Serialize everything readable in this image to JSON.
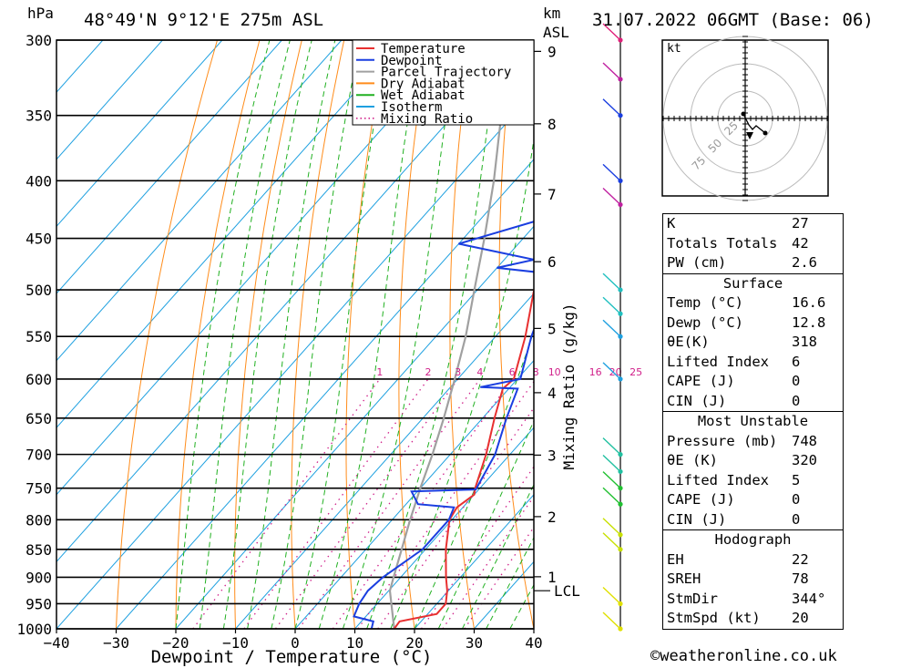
{
  "header": {
    "pressure_unit": "hPa",
    "location": "48°49'N  9°12'E  275m  ASL",
    "km_label": "km",
    "asl_label": "ASL",
    "datetime": "31.07.2022  06GMT  (Base: 06)"
  },
  "legend": [
    {
      "label": "Temperature",
      "color": "#e83030",
      "style": "solid"
    },
    {
      "label": "Dewpoint",
      "color": "#1a3ee0",
      "style": "solid"
    },
    {
      "label": "Parcel Trajectory",
      "color": "#a0a0a0",
      "style": "solid"
    },
    {
      "label": "Dry Adiabat",
      "color": "#ff8c1a",
      "style": "solid"
    },
    {
      "label": "Wet Adiabat",
      "color": "#20b020",
      "style": "solid"
    },
    {
      "label": "Isotherm",
      "color": "#1ea0e0",
      "style": "solid"
    },
    {
      "label": "Mixing Ratio",
      "color": "#d0208a",
      "style": "dotted"
    }
  ],
  "chart_data": {
    "type": "skew-t",
    "xlabel": "Dewpoint / Temperature (°C)",
    "ylabel_right": "Mixing Ratio (g/kg)",
    "pressure_levels": [
      300,
      350,
      400,
      450,
      500,
      550,
      600,
      650,
      700,
      750,
      800,
      850,
      900,
      950,
      1000
    ],
    "temperature_ticks": [
      -40,
      -30,
      -20,
      -10,
      0,
      10,
      20,
      30,
      40
    ],
    "height_km_ticks": [
      {
        "label": "1",
        "pressure": 899
      },
      {
        "label": "2",
        "pressure": 795
      },
      {
        "label": "3",
        "pressure": 701
      },
      {
        "label": "4",
        "pressure": 617
      },
      {
        "label": "5",
        "pressure": 541
      },
      {
        "label": "6",
        "pressure": 472
      },
      {
        "label": "7",
        "pressure": 411
      },
      {
        "label": "8",
        "pressure": 356
      },
      {
        "label": "9",
        "pressure": 307
      }
    ],
    "lcl": {
      "label": "LCL",
      "pressure": 925
    },
    "mixing_ratio_labels": [
      "1",
      "2",
      "3",
      "4",
      "6",
      "8",
      "10",
      "16",
      "20",
      "25"
    ],
    "mixing_ratio_values": [
      1,
      2,
      3,
      4,
      6,
      8,
      10,
      16,
      20,
      25
    ],
    "temperature_profile": [
      {
        "p": 1000,
        "t": 16.6
      },
      {
        "p": 985,
        "t": 16.4
      },
      {
        "p": 970,
        "t": 21.5
      },
      {
        "p": 950,
        "t": 21.5
      },
      {
        "p": 925,
        "t": 19.8
      },
      {
        "p": 900,
        "t": 17.6
      },
      {
        "p": 850,
        "t": 13.4
      },
      {
        "p": 800,
        "t": 9.6
      },
      {
        "p": 780,
        "t": 9.0
      },
      {
        "p": 760,
        "t": 10.0
      },
      {
        "p": 750,
        "t": 9.2
      },
      {
        "p": 700,
        "t": 6.0
      },
      {
        "p": 650,
        "t": 2.0
      },
      {
        "p": 612,
        "t": -1.0
      },
      {
        "p": 600,
        "t": -0.6
      },
      {
        "p": 550,
        "t": -5.0
      },
      {
        "p": 500,
        "t": -10.5
      },
      {
        "p": 475,
        "t": -12.5
      },
      {
        "p": 465,
        "t": -12.0
      },
      {
        "p": 450,
        "t": -14.5
      },
      {
        "p": 400,
        "t": -20.0
      },
      {
        "p": 380,
        "t": -21.0
      },
      {
        "p": 350,
        "t": -27.5
      },
      {
        "p": 330,
        "t": -31.0
      },
      {
        "p": 300,
        "t": -36.0
      }
    ],
    "dewpoint_profile": [
      {
        "p": 1000,
        "t": 12.8
      },
      {
        "p": 985,
        "t": 12.0
      },
      {
        "p": 975,
        "t": 8.0
      },
      {
        "p": 950,
        "t": 7.0
      },
      {
        "p": 925,
        "t": 6.5
      },
      {
        "p": 900,
        "t": 7.0
      },
      {
        "p": 850,
        "t": 9.5
      },
      {
        "p": 800,
        "t": 9.5
      },
      {
        "p": 780,
        "t": 8.5
      },
      {
        "p": 775,
        "t": 2.0
      },
      {
        "p": 755,
        "t": -1.0
      },
      {
        "p": 752,
        "t": 9.5
      },
      {
        "p": 700,
        "t": 7.5
      },
      {
        "p": 650,
        "t": 4.0
      },
      {
        "p": 612,
        "t": 1.5
      },
      {
        "p": 610,
        "t": -5.0
      },
      {
        "p": 600,
        "t": 0.5
      },
      {
        "p": 550,
        "t": -4.0
      },
      {
        "p": 500,
        "t": -8.0
      },
      {
        "p": 485,
        "t": -8.0
      },
      {
        "p": 478,
        "t": -20.0
      },
      {
        "p": 470,
        "t": -15.0
      },
      {
        "p": 455,
        "t": -30.0
      },
      {
        "p": 425,
        "t": -16.0
      },
      {
        "p": 420,
        "t": -10.0
      },
      {
        "p": 400,
        "t": -16.0
      },
      {
        "p": 380,
        "t": -20.0
      },
      {
        "p": 350,
        "t": -22.0
      },
      {
        "p": 330,
        "t": -23.0
      },
      {
        "p": 300,
        "t": -33.0
      }
    ],
    "parcel_profile": [
      {
        "p": 1000,
        "t": 16.6
      },
      {
        "p": 925,
        "t": 10.2
      },
      {
        "p": 900,
        "t": 8.8
      },
      {
        "p": 850,
        "t": 6.0
      },
      {
        "p": 800,
        "t": 3.0
      },
      {
        "p": 750,
        "t": 0.0
      },
      {
        "p": 700,
        "t": -3.0
      },
      {
        "p": 650,
        "t": -6.5
      },
      {
        "p": 600,
        "t": -10.5
      },
      {
        "p": 550,
        "t": -15.0
      },
      {
        "p": 500,
        "t": -20.5
      },
      {
        "p": 450,
        "t": -26.5
      },
      {
        "p": 400,
        "t": -33.5
      },
      {
        "p": 350,
        "t": -42.0
      },
      {
        "p": 300,
        "t": -51.0
      }
    ],
    "wind_marker_pressures": [
      1000,
      950,
      850,
      825,
      775,
      750,
      725,
      700,
      600,
      550,
      525,
      500,
      420,
      400,
      350,
      325,
      300
    ],
    "wind_marker_colors": [
      "#e0e000",
      "#e0e000",
      "#c8e000",
      "#c8e000",
      "#20c030",
      "#20c030",
      "#20c0a0",
      "#20c0a0",
      "#1ea0e0",
      "#1ea0e0",
      "#20c0c0",
      "#20c0c0",
      "#c020a0",
      "#1a3ee0",
      "#1a3ee0",
      "#c020a0",
      "#e0207a"
    ]
  },
  "hodograph": {
    "unit_label": "kt",
    "ring_labels": [
      "25",
      "50",
      "75"
    ]
  },
  "indices": {
    "top": [
      {
        "label": "K",
        "value": "27"
      },
      {
        "label": "Totals Totals",
        "value": "42"
      },
      {
        "label": "PW (cm)",
        "value": "2.6"
      }
    ],
    "surface": {
      "title": "Surface",
      "rows": [
        {
          "label": "Temp (°C)",
          "value": "16.6"
        },
        {
          "label": "Dewp (°C)",
          "value": "12.8"
        },
        {
          "label": "θE(K)",
          "value": "318"
        },
        {
          "label": "Lifted Index",
          "value": "6"
        },
        {
          "label": "CAPE (J)",
          "value": "0"
        },
        {
          "label": "CIN (J)",
          "value": "0"
        }
      ]
    },
    "most_unstable": {
      "title": "Most Unstable",
      "rows": [
        {
          "label": "Pressure (mb)",
          "value": "748"
        },
        {
          "label": "θE (K)",
          "value": "320"
        },
        {
          "label": "Lifted Index",
          "value": "5"
        },
        {
          "label": "CAPE (J)",
          "value": "0"
        },
        {
          "label": "CIN (J)",
          "value": "0"
        }
      ]
    },
    "hodograph_box": {
      "title": "Hodograph",
      "rows": [
        {
          "label": "EH",
          "value": "22"
        },
        {
          "label": "SREH",
          "value": "78"
        },
        {
          "label": "StmDir",
          "value": "344°"
        },
        {
          "label": "StmSpd (kt)",
          "value": "20"
        }
      ]
    }
  },
  "footer": "©weatheronline.co.uk"
}
